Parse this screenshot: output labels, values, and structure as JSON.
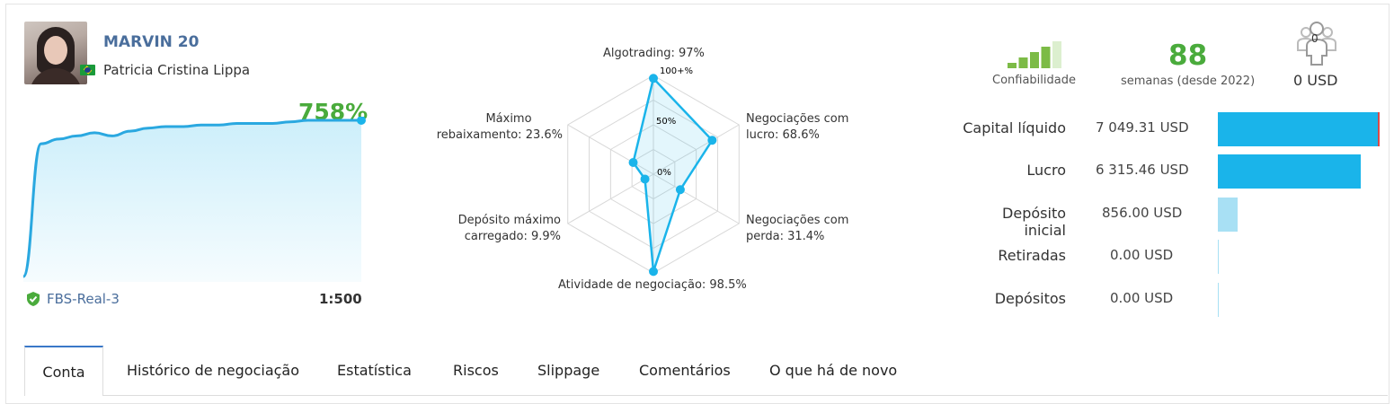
{
  "account": {
    "name": "MARVIN 20",
    "owner": "Patricia Cristina Lippa",
    "gain": "758%",
    "server": "FBS-Real-3",
    "leverage": "1:500",
    "accent_color": "#1ab4ea",
    "gain_color": "#4aab3c"
  },
  "growth_chart": {
    "type": "area",
    "description_values": [
      0,
      85,
      88,
      90,
      92,
      90,
      93,
      95,
      96,
      96,
      97,
      97,
      98,
      98,
      98,
      99,
      100,
      100,
      100,
      100
    ],
    "ylim": [
      0,
      100
    ]
  },
  "radar": {
    "type": "radar",
    "axes": [
      {
        "label_lines": [
          "Algotrading: 97%"
        ],
        "value": 97
      },
      {
        "label_lines": [
          "Negociações com",
          "lucro: 68.6%"
        ],
        "value": 68.6
      },
      {
        "label_lines": [
          "Negociações com",
          "perda: 31.4%"
        ],
        "value": 31.4
      },
      {
        "label_lines": [
          "Atividade de negociação: 98.5%"
        ],
        "value": 98.5
      },
      {
        "label_lines": [
          "Depósito máximo",
          "carregado: 9.9%"
        ],
        "value": 9.9
      },
      {
        "label_lines": [
          "Máximo",
          "rebaixamento: 23.6%"
        ],
        "value": 23.6
      }
    ],
    "ticks": [
      "100+%",
      "50%",
      "0%"
    ]
  },
  "reliability": {
    "label": "Confiabilidade",
    "levels_filled": 4,
    "levels_total": 5
  },
  "weeks": {
    "value": "88",
    "label": "semanas (desde 2022)"
  },
  "subscribers": {
    "count": "0",
    "amount": "0 USD"
  },
  "stats": [
    {
      "label": "Capital líquido",
      "value": "7 049.31 USD",
      "fraction": 1.0,
      "color": "#1ab4ea"
    },
    {
      "label": "Lucro",
      "value": "6 315.46 USD",
      "fraction": 0.896,
      "color": "#1ab4ea"
    },
    {
      "label": "Depósito inicial",
      "value": "856.00 USD",
      "fraction": 0.121,
      "color": "#a8e0f4"
    },
    {
      "label": "Retiradas",
      "value": "0.00 USD",
      "fraction": 0,
      "color": "#a8e0f4"
    },
    {
      "label": "Depósitos",
      "value": "0.00 USD",
      "fraction": 0,
      "color": "#a8e0f4"
    }
  ],
  "tabs": [
    {
      "label": "Conta",
      "active": true
    },
    {
      "label": "Histórico de negociação",
      "active": false
    },
    {
      "label": "Estatística",
      "active": false
    },
    {
      "label": "Riscos",
      "active": false
    },
    {
      "label": "Slippage",
      "active": false
    },
    {
      "label": "Comentários",
      "active": false
    },
    {
      "label": "O que há de novo",
      "active": false
    }
  ]
}
